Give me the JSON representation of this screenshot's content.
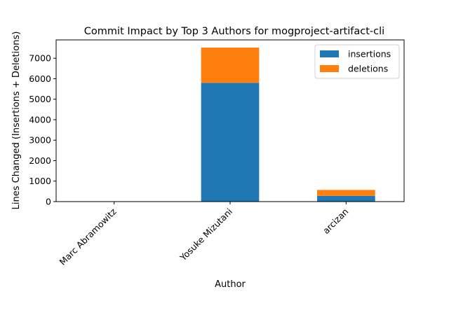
{
  "chart_data": {
    "type": "bar",
    "stacked": true,
    "title": "Commit Impact by Top 3 Authors for mogproject-artifact-cli",
    "xlabel": "Author",
    "ylabel": "Lines Changed (Insertions + Deletions)",
    "categories": [
      "Marc Abramowitz",
      "Yosuke Mizutani",
      "arcizan"
    ],
    "series": [
      {
        "name": "insertions",
        "color": "#1f77b4",
        "values": [
          0,
          5800,
          280
        ]
      },
      {
        "name": "deletions",
        "color": "#ff7f0e",
        "values": [
          0,
          1720,
          290
        ]
      }
    ],
    "ylim": [
      0,
      7896
    ],
    "yticks": [
      0,
      1000,
      2000,
      3000,
      4000,
      5000,
      6000,
      7000
    ],
    "grid": false,
    "legend_position": "top-right"
  }
}
